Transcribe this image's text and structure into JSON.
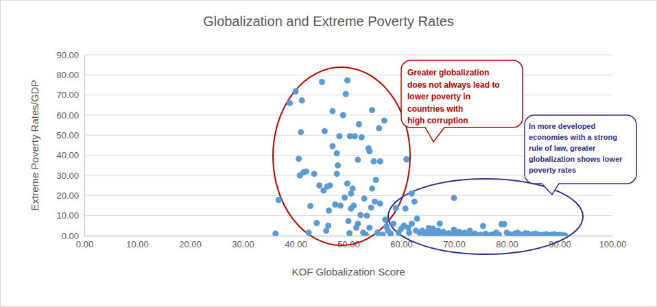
{
  "chart_data": {
    "type": "scatter",
    "title": "Globalization and Extreme Poverty Rates",
    "x_label": "KOF Globalization Score",
    "y_label": "Extreme Poverty Rates/GDP",
    "color": "#5b9bd5",
    "marker": "circle",
    "grid": true,
    "xlim": [
      0,
      100
    ],
    "ylim": [
      0,
      90
    ],
    "xticks": [
      {
        "value": 0,
        "label": "0.00"
      },
      {
        "value": 10,
        "label": "10.00"
      },
      {
        "value": 20,
        "label": "20.00"
      },
      {
        "value": 30,
        "label": "30.00"
      },
      {
        "value": 40,
        "label": "40.00"
      },
      {
        "value": 50,
        "label": "50.00"
      },
      {
        "value": 60,
        "label": "60.00"
      },
      {
        "value": 70,
        "label": "70.00"
      },
      {
        "value": 80,
        "label": "80.00"
      },
      {
        "value": 90,
        "label": "90.00"
      },
      {
        "value": 100,
        "label": "100.00"
      }
    ],
    "yticks": [
      {
        "value": 0,
        "label": "0.00"
      },
      {
        "value": 10,
        "label": "10.00"
      },
      {
        "value": 20,
        "label": "20.00"
      },
      {
        "value": 30,
        "label": "30.00"
      },
      {
        "value": 40,
        "label": "40.00"
      },
      {
        "value": 50,
        "label": "50.00"
      },
      {
        "value": 60,
        "label": "60.00"
      },
      {
        "value": 70,
        "label": "70.00"
      },
      {
        "value": 80,
        "label": "80.00"
      },
      {
        "value": 90,
        "label": "90.00"
      }
    ],
    "x": [
      36.2,
      36.8,
      38.9,
      40.0,
      40.6,
      40.8,
      41.0,
      41.2,
      41.5,
      42.0,
      42.5,
      42.8,
      43.5,
      44.0,
      44.5,
      45.0,
      45.3,
      45.5,
      45.8,
      46.0,
      46.2,
      46.3,
      46.5,
      47.0,
      47.0,
      47.5,
      47.8,
      47.8,
      48.0,
      48.3,
      48.5,
      49.0,
      49.3,
      49.5,
      49.8,
      49.8,
      50.0,
      50.2,
      50.3,
      50.5,
      50.5,
      50.8,
      51.0,
      51.2,
      51.5,
      51.8,
      51.8,
      52.0,
      52.3,
      52.5,
      52.8,
      53.0,
      53.3,
      53.5,
      53.8,
      54.0,
      54.0,
      54.3,
      54.5,
      54.5,
      54.8,
      55.0,
      55.2,
      55.5,
      55.8,
      56.0,
      56.0,
      56.5,
      56.8,
      57.0,
      57.2,
      57.5,
      58.0,
      58.5,
      59.0,
      59.5,
      60.0,
      60.5,
      60.8,
      61.0,
      61.3,
      61.5,
      62.0,
      62.0,
      62.5,
      62.8,
      63.0,
      63.5,
      64.0,
      64.5,
      65.0,
      65.2,
      65.5,
      66.0,
      66.0,
      66.5,
      67.0,
      67.3,
      67.5,
      68.0,
      68.5,
      69.0,
      69.5,
      70.0,
      70.0,
      70.5,
      71.0,
      71.5,
      72.0,
      72.5,
      73.0,
      73.5,
      74.0,
      75.0,
      75.5,
      76.0,
      77.0,
      77.5,
      78.0,
      78.5,
      79.0,
      79.5,
      80.0,
      80.5,
      81.0,
      81.5,
      82.0,
      82.5,
      83.0,
      83.5,
      84.0,
      84.5,
      85.0,
      85.5,
      86.0,
      86.5,
      87.0,
      87.5,
      88.0,
      88.5,
      89.0,
      89.5,
      90.0,
      90.5,
      91.0
    ],
    "values": [
      1.0,
      17.8,
      66.0,
      71.8,
      38.3,
      30.0,
      51.5,
      67.3,
      31.5,
      32.0,
      1.5,
      14.8,
      30.8,
      6.3,
      25.0,
      76.5,
      22.5,
      52.0,
      2.5,
      24.5,
      5.0,
      12.5,
      25.0,
      62.0,
      44.5,
      15.5,
      41.0,
      30.8,
      35.0,
      49.5,
      15.0,
      60.0,
      19.0,
      70.5,
      77.3,
      26.0,
      7.3,
      1.2,
      49.5,
      13.5,
      21.0,
      23.5,
      15.0,
      49.5,
      4.0,
      37.8,
      6.0,
      55.5,
      10.3,
      49.0,
      1.5,
      18.5,
      0.5,
      10.0,
      43.5,
      4.0,
      42.0,
      14.0,
      62.5,
      23.5,
      37.0,
      17.0,
      27.8,
      1.5,
      53.5,
      16.0,
      37.0,
      0.5,
      57.3,
      8.0,
      4.5,
      2.5,
      1.0,
      6.0,
      13.8,
      1.5,
      3.5,
      5.0,
      13.5,
      38.0,
      4.0,
      1.5,
      21.0,
      6.0,
      17.0,
      2.5,
      8.5,
      1.5,
      2.5,
      0.8,
      2.0,
      3.8,
      1.0,
      3.5,
      1.5,
      0.5,
      2.5,
      6.0,
      1.0,
      2.0,
      0.8,
      1.2,
      0.3,
      18.8,
      3.0,
      1.0,
      2.0,
      0.5,
      1.5,
      0.8,
      2.5,
      0.5,
      1.0,
      0.5,
      4.8,
      1.0,
      0.5,
      0.8,
      1.5,
      0.5,
      5.8,
      5.8,
      1.5,
      0.8,
      0.5,
      1.0,
      1.5,
      0.8,
      0.5,
      1.2,
      1.0,
      0.5,
      0.8,
      1.0,
      0.5,
      0.3,
      0.5,
      0.8,
      0.3,
      0.5,
      0.8,
      0.3,
      0.5,
      0.3,
      0.2
    ],
    "annotations": [
      {
        "lines": [
          "Greater globalization",
          "does not always lead to",
          "lower poverty in",
          "countries with",
          "high corruption"
        ],
        "color": "#c00000"
      },
      {
        "lines": [
          "In more developed",
          "economies with a strong",
          "rule of law, greater",
          "globalization shows lower",
          "poverty rates"
        ],
        "color": "#2e3192"
      }
    ]
  }
}
